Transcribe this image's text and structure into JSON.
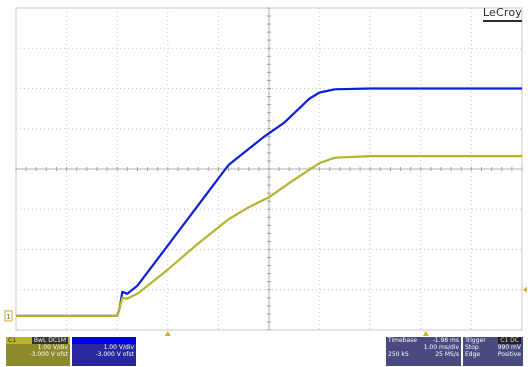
{
  "brand": "LeCroy",
  "colors": {
    "grid": "#c8c8c8",
    "ch1": "#b5b22c",
    "ch2": "#0b1fd8",
    "marker": "#c8b020"
  },
  "channel_1": {
    "id": "C1",
    "badge": "BwL DC1M",
    "scale": "1.00 V/div",
    "offset": "-3.000 V ofst"
  },
  "channel_2": {
    "id": "",
    "scale": "1.00 V/div",
    "offset": "-3.000 V ofst"
  },
  "timebase": {
    "label": "Timebase",
    "delay": "-1.98 ms",
    "scale": "1.00 ms/div",
    "samples": "250 kS",
    "rate": "25 MS/s"
  },
  "trigger": {
    "label": "Trigger",
    "badge": "C1 DC",
    "mode": "Stop",
    "level": "990 mV",
    "type": "Edge",
    "slope": "Positive"
  },
  "ground_marker": "1",
  "chart_data": {
    "type": "line",
    "title": "",
    "xlabel": "",
    "ylabel": "",
    "x_unit": "div",
    "y_unit": "div",
    "xlim": [
      0,
      10
    ],
    "ylim": [
      0,
      8
    ],
    "grid": true,
    "series": [
      {
        "channel": "C2",
        "color": "#0b1fd8",
        "x": [
          0,
          2.0,
          2.05,
          2.1,
          2.2,
          2.4,
          3.0,
          3.6,
          4.2,
          4.5,
          4.9,
          5.3,
          5.8,
          6.0,
          6.3,
          7.0,
          10.0
        ],
        "y": [
          0.35,
          0.35,
          0.55,
          0.95,
          0.9,
          1.1,
          2.1,
          3.1,
          4.1,
          4.4,
          4.8,
          5.15,
          5.75,
          5.9,
          5.98,
          6.0,
          6.0
        ]
      },
      {
        "channel": "C1",
        "color": "#b5b22c",
        "x": [
          0,
          2.0,
          2.05,
          2.1,
          2.2,
          2.4,
          3.0,
          3.6,
          4.2,
          4.6,
          5.0,
          5.4,
          6.0,
          6.3,
          7.0,
          10.0
        ],
        "y": [
          0.35,
          0.35,
          0.55,
          0.8,
          0.78,
          0.9,
          1.5,
          2.15,
          2.75,
          3.05,
          3.3,
          3.65,
          4.15,
          4.28,
          4.32,
          4.32
        ]
      }
    ]
  }
}
